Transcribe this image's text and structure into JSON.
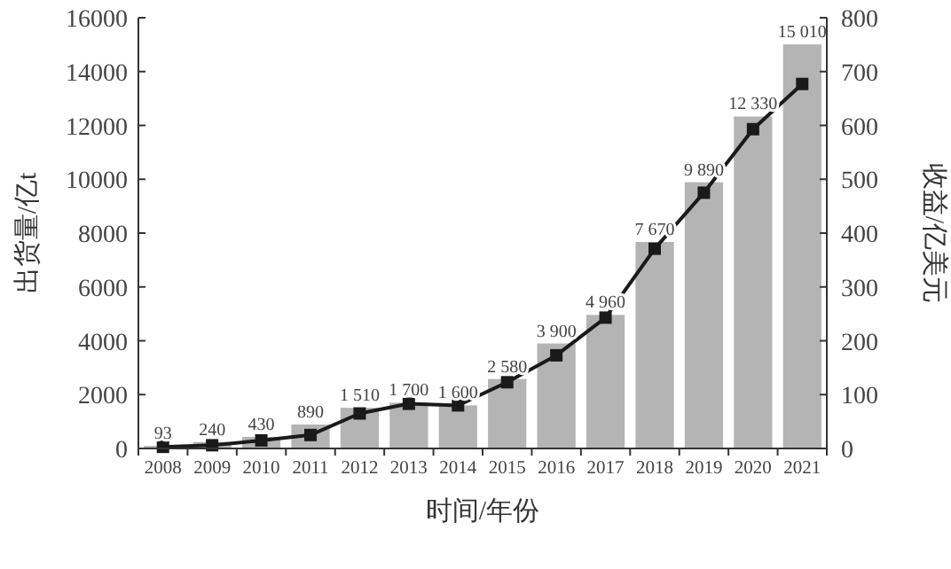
{
  "chart_data": {
    "type": "bar",
    "categories": [
      "2008",
      "2009",
      "2010",
      "2011",
      "2012",
      "2013",
      "2014",
      "2015",
      "2016",
      "2017",
      "2018",
      "2019",
      "2020",
      "2021"
    ],
    "xlabel": "时间/年份",
    "ylabel": "出货量/亿t",
    "y2label": "收益/亿美元",
    "ylim": [
      0,
      16000
    ],
    "yticks": [
      0,
      2000,
      4000,
      6000,
      8000,
      10000,
      12000,
      14000,
      16000
    ],
    "y2lim": [
      0,
      800
    ],
    "y2ticks": [
      0,
      100,
      200,
      300,
      400,
      500,
      600,
      700,
      800
    ],
    "grid": false,
    "series": [
      {
        "color": "#b4b4b4",
        "values": [
          93,
          240,
          430,
          890,
          1510,
          1700,
          1600,
          2580,
          3900,
          4960,
          7670,
          9890,
          12330,
          15010
        ],
        "value_labels": [
          "93",
          "240",
          "430",
          "890",
          "1 510",
          "1 700",
          "1 600",
          "2 580",
          "3 900",
          "4 960",
          "7 670",
          "9 890",
          "12 330",
          "15 010"
        ]
      },
      {
        "type": "line",
        "axis": "y2",
        "color": "#1a1a1a",
        "marker": "square",
        "line_style": "solid",
        "values": [
          3,
          6,
          15,
          25,
          65,
          83,
          80,
          123,
          173,
          243,
          371,
          475,
          593,
          677
        ]
      }
    ]
  }
}
